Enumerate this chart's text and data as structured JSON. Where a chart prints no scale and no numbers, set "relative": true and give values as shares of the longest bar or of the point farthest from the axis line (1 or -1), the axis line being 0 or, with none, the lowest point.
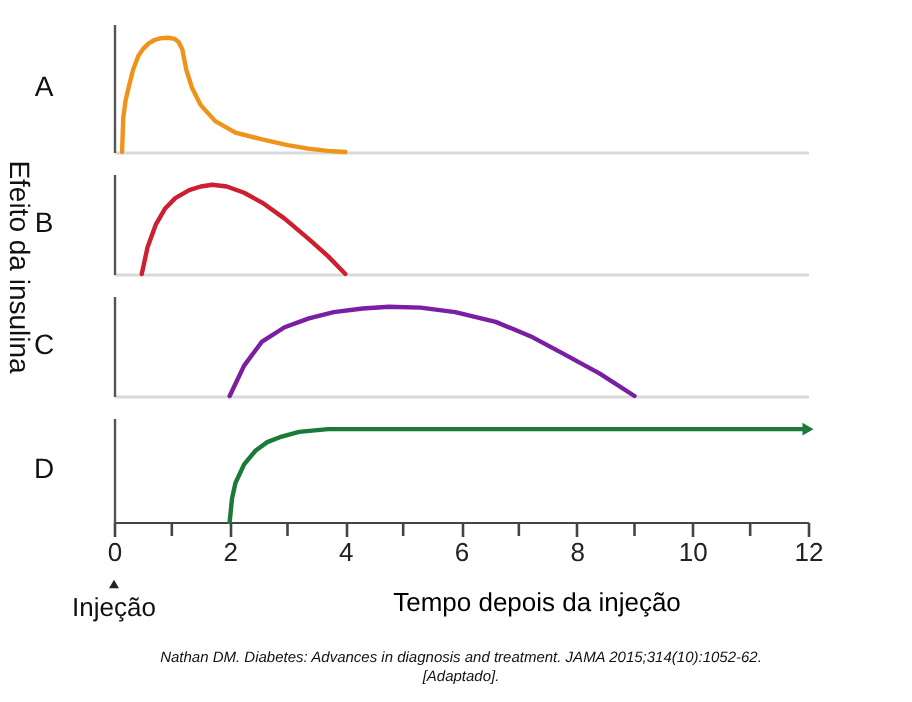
{
  "chart_data": [
    {
      "type": "line",
      "title": "A",
      "ylabel": "Efeito da insulina",
      "relative": true,
      "xlim": [
        0,
        12
      ],
      "color": "#f0931b",
      "x": [
        0.14,
        0.16,
        0.2,
        0.25,
        0.33,
        0.42,
        0.5,
        0.6,
        0.7,
        0.8,
        0.94,
        1.05,
        1.12,
        1.18,
        1.25,
        1.35,
        1.5,
        1.75,
        2.1,
        2.56,
        3.0,
        3.36,
        3.7,
        4.0
      ],
      "values": [
        0,
        0.3,
        0.45,
        0.56,
        0.72,
        0.84,
        0.9,
        0.95,
        0.98,
        0.995,
        1,
        0.99,
        0.96,
        0.9,
        0.72,
        0.56,
        0.41,
        0.27,
        0.17,
        0.11,
        0.06,
        0.03,
        0.01,
        0
      ]
    },
    {
      "type": "line",
      "title": "B",
      "relative": true,
      "xlim": [
        0,
        12
      ],
      "color": "#cc1f2f",
      "x": [
        0.48,
        0.58,
        0.72,
        0.88,
        1.06,
        1.3,
        1.5,
        1.7,
        1.95,
        2.25,
        2.56,
        2.95,
        3.37,
        3.7,
        4.0
      ],
      "values": [
        0,
        0.3,
        0.55,
        0.73,
        0.85,
        0.94,
        0.98,
        1,
        0.98,
        0.91,
        0.8,
        0.62,
        0.39,
        0.2,
        0
      ]
    },
    {
      "type": "line",
      "title": "C",
      "relative": true,
      "xlim": [
        0,
        12
      ],
      "color": "#7b1fa2",
      "x": [
        2,
        2.25,
        2.56,
        2.95,
        3.37,
        3.8,
        4.3,
        4.75,
        5.3,
        5.9,
        6.6,
        7.2,
        7.75,
        8.4,
        9
      ],
      "values": [
        0,
        0.34,
        0.61,
        0.77,
        0.87,
        0.94,
        0.98,
        1,
        0.99,
        0.94,
        0.83,
        0.67,
        0.48,
        0.25,
        0
      ]
    },
    {
      "type": "line",
      "title": "D",
      "relative": true,
      "xlim": [
        0,
        12
      ],
      "xlabel": "Tempo depois da injeção",
      "color": "#1b7a3a",
      "x": [
        2,
        2.04,
        2.1,
        2.25,
        2.45,
        2.65,
        2.9,
        3.2,
        3.7,
        12
      ],
      "values": [
        0,
        0.25,
        0.42,
        0.62,
        0.77,
        0.86,
        0.92,
        0.97,
        1,
        1
      ],
      "xticks": [
        0,
        {
          "value": 1,
          "label": null
        },
        2,
        {
          "value": 3,
          "label": null
        },
        4,
        {
          "value": 5,
          "label": null
        },
        6,
        {
          "value": 7,
          "label": null
        },
        8,
        {
          "value": 9,
          "label": null
        },
        10,
        {
          "value": 11,
          "label": null
        },
        12
      ],
      "annotations": [
        "Injeção",
        "Nathan DM. Diabetes: Advances in diagnosis and treatment. JAMA 2015;314(10):1052-62.\n[Adaptado]."
      ]
    }
  ]
}
